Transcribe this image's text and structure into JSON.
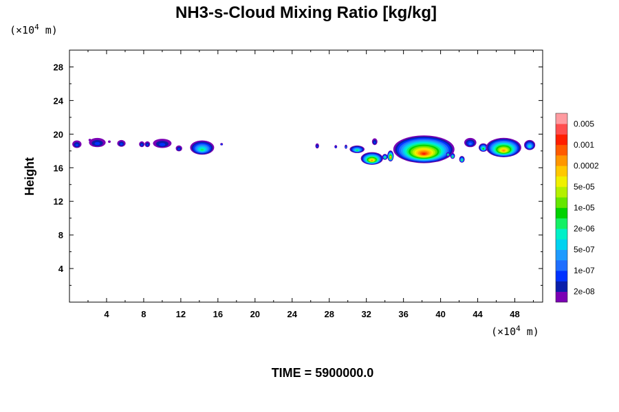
{
  "chart_data": {
    "type": "heatmap",
    "title": "NH3-s-Cloud Mixing Ratio [kg/kg]",
    "xlabel": "",
    "ylabel": "Height",
    "x_unit": "(×10",
    "x_unit_exp": "4",
    "x_unit_tail": " m)",
    "y_unit": "(×10",
    "y_unit_exp": "4",
    "y_unit_tail": " m)",
    "xlim": [
      0,
      51
    ],
    "ylim": [
      0,
      30
    ],
    "xticks": [
      4,
      8,
      12,
      16,
      20,
      24,
      28,
      32,
      36,
      40,
      44,
      48
    ],
    "yticks": [
      4,
      8,
      12,
      16,
      20,
      24,
      28
    ],
    "grid": false,
    "time_label": "TIME = 5900000.0",
    "colorbar": {
      "labels": [
        "0.005",
        "0.001",
        "0.0002",
        "5e-05",
        "1e-05",
        "2e-06",
        "5e-07",
        "1e-07",
        "2e-08"
      ],
      "colors": [
        "#7b00b4",
        "#0a1eaa",
        "#0032ff",
        "#1e6eff",
        "#1e9bff",
        "#00d2f0",
        "#00f0c8",
        "#14f064",
        "#00d200",
        "#64e600",
        "#b4f000",
        "#f0f000",
        "#ffc800",
        "#ff9600",
        "#ff5a00",
        "#ff1e00",
        "#ff4e4e",
        "#ff9ba0"
      ]
    },
    "clouds": [
      {
        "cx": 0.8,
        "cy": 18.8,
        "rx": 0.5,
        "ry": 0.45,
        "level": 2
      },
      {
        "cx": 2.2,
        "cy": 19.3,
        "rx": 0.15,
        "ry": 0.15,
        "level": 0
      },
      {
        "cx": 3.0,
        "cy": 19.0,
        "rx": 0.9,
        "ry": 0.55,
        "level": 2
      },
      {
        "cx": 4.3,
        "cy": 19.1,
        "rx": 0.15,
        "ry": 0.15,
        "level": 0
      },
      {
        "cx": 5.6,
        "cy": 18.9,
        "rx": 0.45,
        "ry": 0.4,
        "level": 2
      },
      {
        "cx": 7.8,
        "cy": 18.8,
        "rx": 0.3,
        "ry": 0.35,
        "level": 2
      },
      {
        "cx": 8.4,
        "cy": 18.8,
        "rx": 0.3,
        "ry": 0.35,
        "level": 2
      },
      {
        "cx": 10.0,
        "cy": 18.9,
        "rx": 1.0,
        "ry": 0.55,
        "level": 2
      },
      {
        "cx": 11.8,
        "cy": 18.3,
        "rx": 0.35,
        "ry": 0.35,
        "level": 2
      },
      {
        "cx": 14.3,
        "cy": 18.4,
        "rx": 1.3,
        "ry": 0.85,
        "level": 7
      },
      {
        "cx": 16.4,
        "cy": 18.8,
        "rx": 0.15,
        "ry": 0.15,
        "level": 2
      },
      {
        "cx": 26.7,
        "cy": 18.6,
        "rx": 0.2,
        "ry": 0.3,
        "level": 2
      },
      {
        "cx": 28.7,
        "cy": 18.5,
        "rx": 0.15,
        "ry": 0.2,
        "level": 2
      },
      {
        "cx": 29.8,
        "cy": 18.5,
        "rx": 0.15,
        "ry": 0.25,
        "level": 3
      },
      {
        "cx": 31.0,
        "cy": 18.2,
        "rx": 0.8,
        "ry": 0.45,
        "level": 7
      },
      {
        "cx": 32.6,
        "cy": 17.1,
        "rx": 1.2,
        "ry": 0.75,
        "level": 13
      },
      {
        "cx": 32.9,
        "cy": 19.1,
        "rx": 0.3,
        "ry": 0.4,
        "level": 2
      },
      {
        "cx": 34.0,
        "cy": 17.3,
        "rx": 0.3,
        "ry": 0.35,
        "level": 7
      },
      {
        "cx": 34.6,
        "cy": 17.4,
        "rx": 0.35,
        "ry": 0.65,
        "level": 13
      },
      {
        "cx": 38.2,
        "cy": 18.2,
        "rx": 3.3,
        "ry": 1.65,
        "level": 15
      },
      {
        "cx": 40.8,
        "cy": 17.6,
        "rx": 0.2,
        "ry": 0.25,
        "level": 7
      },
      {
        "cx": 41.3,
        "cy": 17.4,
        "rx": 0.25,
        "ry": 0.35,
        "level": 7
      },
      {
        "cx": 42.3,
        "cy": 17.0,
        "rx": 0.3,
        "ry": 0.4,
        "level": 7
      },
      {
        "cx": 43.2,
        "cy": 19.0,
        "rx": 0.65,
        "ry": 0.55,
        "level": 3
      },
      {
        "cx": 44.6,
        "cy": 18.4,
        "rx": 0.5,
        "ry": 0.5,
        "level": 8
      },
      {
        "cx": 46.8,
        "cy": 18.4,
        "rx": 1.9,
        "ry": 1.15,
        "level": 13
      },
      {
        "cx": 49.6,
        "cy": 18.7,
        "rx": 0.6,
        "ry": 0.6,
        "level": 6
      }
    ]
  }
}
